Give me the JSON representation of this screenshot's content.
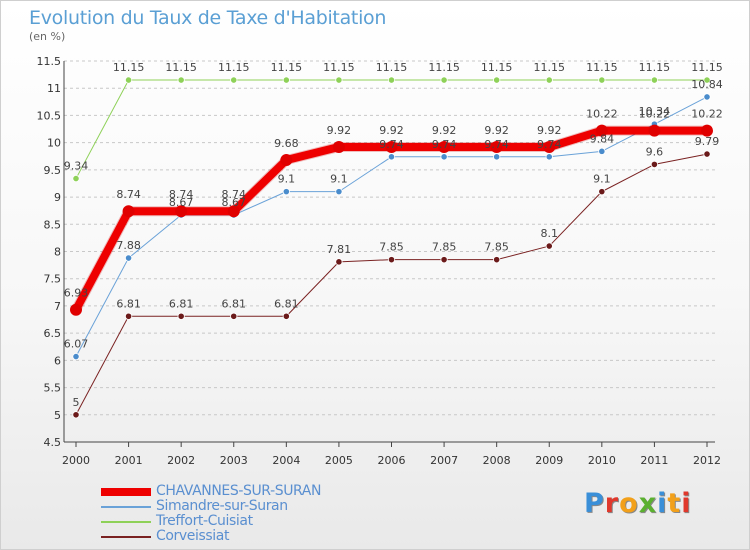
{
  "title": "Evolution du Taux de Taxe d'Habitation",
  "subtitle": "(en %)",
  "logo": {
    "text": "Proxiti",
    "letters": [
      {
        "ch": "P",
        "color": "#3a8fd8"
      },
      {
        "ch": "r",
        "color": "#e0382c"
      },
      {
        "ch": "o",
        "color": "#f2a01a"
      },
      {
        "ch": "x",
        "color": "#5bb030"
      },
      {
        "ch": "i",
        "color": "#3a8fd8"
      },
      {
        "ch": "t",
        "color": "#f2a01a"
      },
      {
        "ch": "i",
        "color": "#e0382c"
      }
    ]
  },
  "chart_data": {
    "type": "line",
    "title": "Evolution du Taux de Taxe d'Habitation",
    "ylabel": "(en %)",
    "x": [
      "2000",
      "2001",
      "2002",
      "2003",
      "2004",
      "2005",
      "2006",
      "2007",
      "2008",
      "2009",
      "2010",
      "2011",
      "2012"
    ],
    "ylim": [
      4.5,
      11.5
    ],
    "yticks": [
      "4.5",
      "5",
      "5.5",
      "6",
      "6.5",
      "7",
      "7.5",
      "8",
      "8.5",
      "9",
      "9.5",
      "10",
      "10.5",
      "11",
      "11.5"
    ],
    "grid": "horizontal dashed",
    "legend_position": "bottom-left",
    "series": [
      {
        "name": "CHAVANNES-SUR-SURAN",
        "color": "#ee0000",
        "width": 8,
        "values": [
          6.93,
          8.74,
          8.74,
          8.74,
          9.68,
          9.92,
          9.92,
          9.92,
          9.92,
          9.92,
          10.22,
          10.22,
          10.22
        ],
        "labels": [
          "6.93",
          "8.74",
          "8.74",
          "8.74",
          "9.68",
          "9.92",
          "9.92",
          "9.92",
          "9.92",
          "9.92",
          "10.22",
          "10.22",
          "10.22"
        ]
      },
      {
        "name": "Simandre-sur-Suran",
        "color": "#6aa2d8",
        "width": 1,
        "values": [
          6.07,
          7.88,
          8.67,
          8.67,
          9.1,
          9.1,
          9.74,
          9.74,
          9.74,
          9.74,
          9.84,
          10.34,
          10.84
        ],
        "labels": [
          "6.07",
          "7.88",
          "8.67",
          "8.67",
          "9.1",
          "9.1",
          "9.74",
          "9.74",
          "9.74",
          "9.74",
          "9.84",
          "10.34",
          "10.84"
        ]
      },
      {
        "name": "Treffort-Cuisiat",
        "color": "#8ed158",
        "width": 1,
        "values": [
          9.34,
          11.15,
          11.15,
          11.15,
          11.15,
          11.15,
          11.15,
          11.15,
          11.15,
          11.15,
          11.15,
          11.15,
          11.15
        ],
        "labels": [
          "9.34",
          "11.15",
          "11.15",
          "11.15",
          "11.15",
          "11.15",
          "11.15",
          "11.15",
          "11.15",
          "11.15",
          "11.15",
          "11.15",
          "11.15"
        ]
      },
      {
        "name": "Corveissiat",
        "color": "#7a2222",
        "width": 1,
        "values": [
          5,
          6.81,
          6.81,
          6.81,
          6.81,
          7.81,
          7.85,
          7.85,
          7.85,
          8.1,
          9.1,
          9.6,
          9.79
        ],
        "labels": [
          "5",
          "6.81",
          "6.81",
          "6.81",
          "6.81",
          "7.81",
          "7.85",
          "7.85",
          "7.85",
          "8.1",
          "9.1",
          "9.6",
          "9.79"
        ]
      }
    ]
  }
}
